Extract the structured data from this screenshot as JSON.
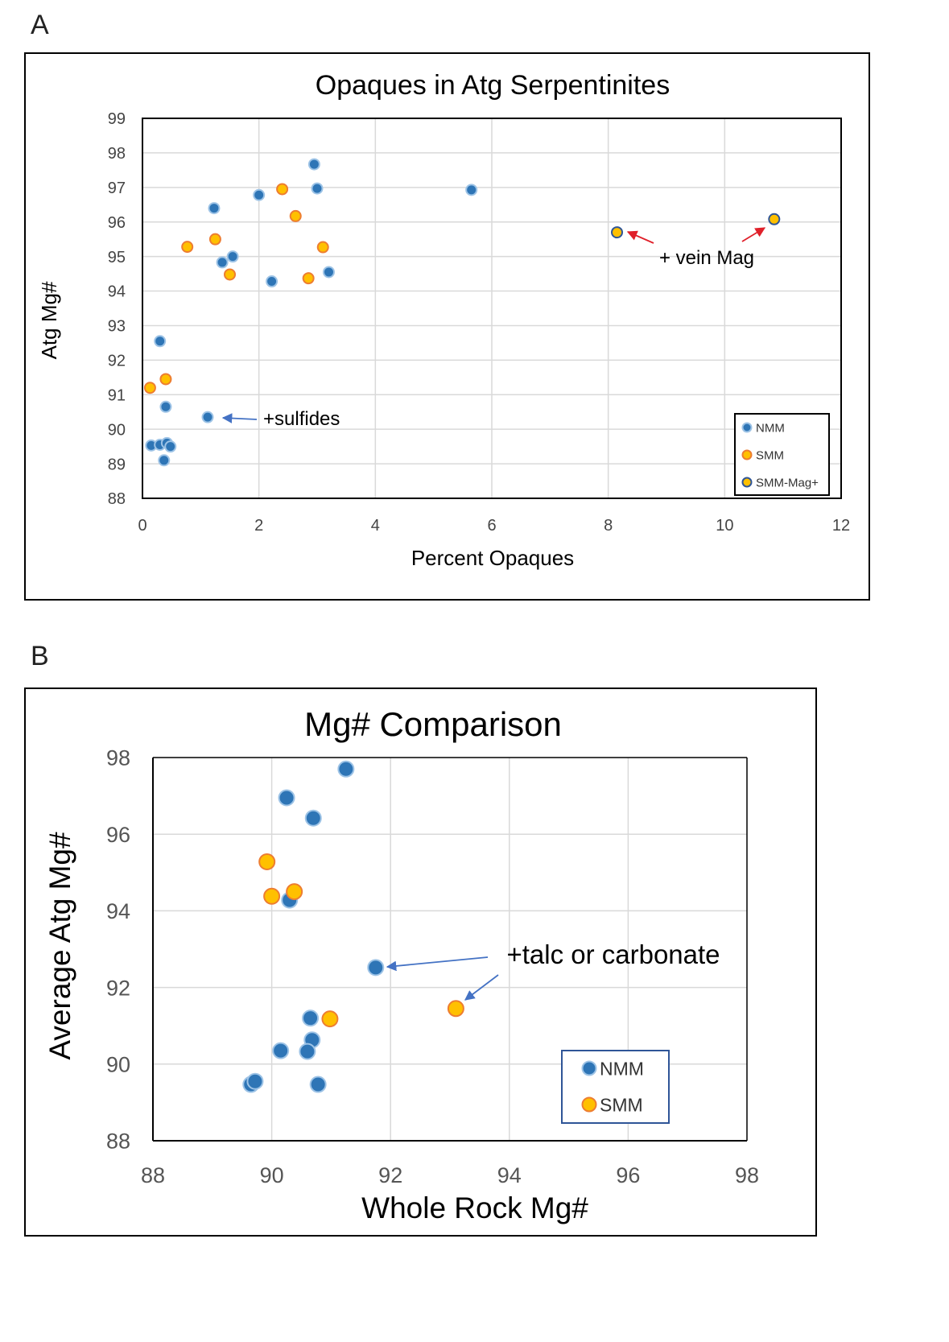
{
  "panels": [
    {
      "letter": "A"
    },
    {
      "letter": "B"
    }
  ],
  "colors": {
    "nmm_fill": "#2e75b6",
    "nmm_stroke": "#9dc3e6",
    "smm_fill": "#ffc000",
    "smm_stroke": "#ed7d31",
    "mag_fill": "#ffc000",
    "mag_stroke": "#2f5597",
    "arrow_red": "#e0202a",
    "arrow_blue": "#4472c4"
  },
  "chart_data": [
    {
      "type": "scatter",
      "title": "Opaques in Atg Serpentinites",
      "xlabel": "Percent Opaques",
      "ylabel": "Atg Mg#",
      "xlim": [
        0,
        12
      ],
      "ylim": [
        88,
        99
      ],
      "xticks": [
        0,
        2,
        4,
        6,
        8,
        10,
        12
      ],
      "yticks": [
        88,
        89,
        90,
        91,
        92,
        93,
        94,
        95,
        96,
        97,
        98,
        99
      ],
      "grid": true,
      "legend_position": "bottom-right",
      "series": [
        {
          "name": "NMM",
          "points": [
            [
              2.95,
              97.67
            ],
            [
              3.0,
              96.97
            ],
            [
              5.65,
              96.93
            ],
            [
              2.0,
              96.78
            ],
            [
              1.23,
              96.4
            ],
            [
              1.55,
              95.0
            ],
            [
              1.37,
              94.83
            ],
            [
              3.2,
              94.55
            ],
            [
              2.22,
              94.28
            ],
            [
              0.3,
              92.55
            ],
            [
              0.4,
              90.65
            ],
            [
              1.12,
              90.35
            ],
            [
              0.15,
              89.53
            ],
            [
              0.3,
              89.55
            ],
            [
              0.42,
              89.6
            ],
            [
              0.48,
              89.5
            ],
            [
              0.37,
              89.1
            ]
          ]
        },
        {
          "name": "SMM",
          "points": [
            [
              2.4,
              96.95
            ],
            [
              2.63,
              96.17
            ],
            [
              1.25,
              95.5
            ],
            [
              0.77,
              95.28
            ],
            [
              3.1,
              95.27
            ],
            [
              1.5,
              94.48
            ],
            [
              2.85,
              94.37
            ],
            [
              0.4,
              91.45
            ],
            [
              0.13,
              91.2
            ]
          ]
        },
        {
          "name": "SMM-Mag+",
          "points": [
            [
              8.15,
              95.7
            ],
            [
              10.85,
              96.08
            ]
          ]
        }
      ],
      "annotations": [
        {
          "text": "+ vein Mag"
        },
        {
          "text": "+sulfides"
        }
      ]
    },
    {
      "type": "scatter",
      "title": "Mg# Comparison",
      "xlabel": "Whole Rock Mg#",
      "ylabel": "Average Atg Mg#",
      "xlim": [
        88,
        98
      ],
      "ylim": [
        88,
        98
      ],
      "xticks": [
        88,
        90,
        92,
        94,
        96,
        98
      ],
      "yticks": [
        88,
        90,
        92,
        94,
        96,
        98
      ],
      "grid": true,
      "legend_position": "bottom-right",
      "series": [
        {
          "name": "NMM",
          "points": [
            [
              91.25,
              97.7
            ],
            [
              90.25,
              96.95
            ],
            [
              90.7,
              96.42
            ],
            [
              90.3,
              94.28
            ],
            [
              91.75,
              92.52
            ],
            [
              90.65,
              91.2
            ],
            [
              90.68,
              90.63
            ],
            [
              90.15,
              90.35
            ],
            [
              90.6,
              90.33
            ],
            [
              89.65,
              89.47
            ],
            [
              89.72,
              89.55
            ],
            [
              90.78,
              89.47
            ]
          ]
        },
        {
          "name": "SMM",
          "points": [
            [
              89.92,
              95.28
            ],
            [
              90.38,
              94.5
            ],
            [
              90.0,
              94.38
            ],
            [
              90.98,
              91.18
            ],
            [
              93.1,
              91.45
            ]
          ]
        }
      ],
      "annotations": [
        {
          "text": "+talc or carbonate"
        }
      ]
    }
  ]
}
